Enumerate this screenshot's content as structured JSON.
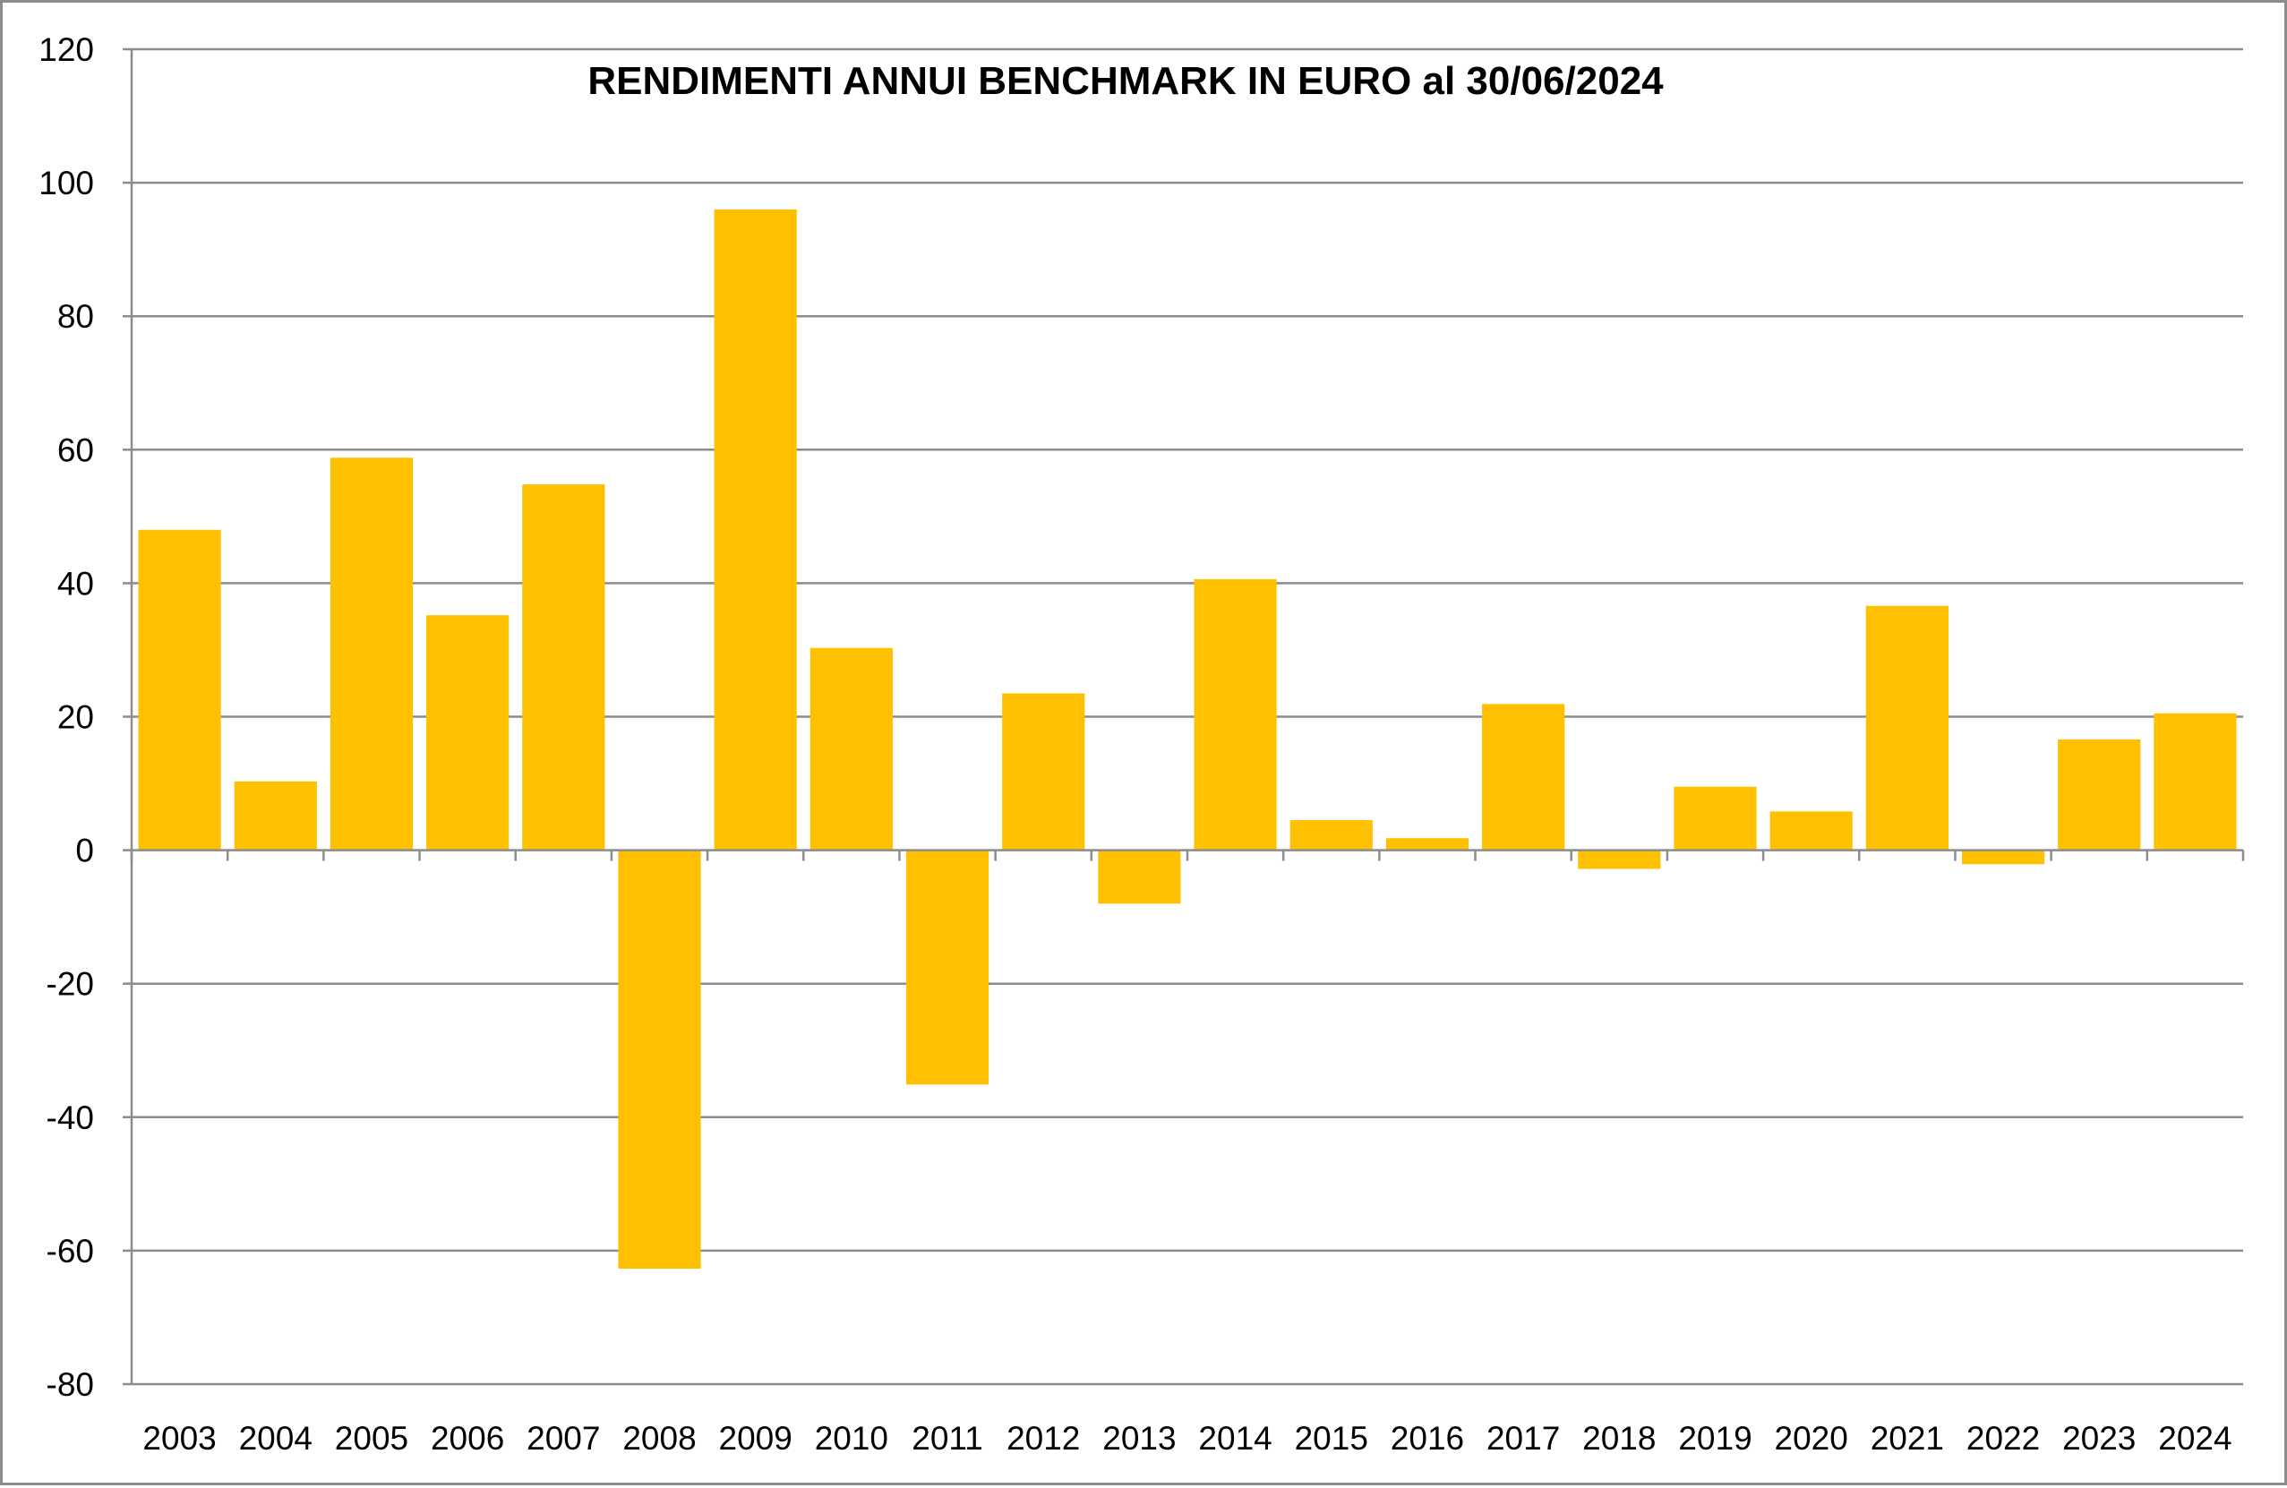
{
  "chart_data": {
    "type": "bar",
    "title": "RENDIMENTI ANNUI BENCHMARK IN EURO al 30/06/2024",
    "xlabel": "",
    "ylabel": "",
    "categories": [
      "2003",
      "2004",
      "2005",
      "2006",
      "2007",
      "2008",
      "2009",
      "2010",
      "2011",
      "2012",
      "2013",
      "2014",
      "2015",
      "2016",
      "2017",
      "2018",
      "2019",
      "2020",
      "2021",
      "2022",
      "2023",
      "2024"
    ],
    "values": [
      48,
      10.3,
      58.8,
      35.2,
      54.8,
      -62.7,
      96,
      30.3,
      -35.1,
      23.5,
      -8,
      40.6,
      4.5,
      1.8,
      21.9,
      -2.8,
      9.5,
      5.8,
      36.6,
      -2.1,
      16.6,
      20.5
    ],
    "ylim": [
      -80,
      120
    ],
    "yticks": [
      120,
      100,
      80,
      60,
      40,
      20,
      0,
      -20,
      -40,
      -60,
      -80
    ],
    "grid": true,
    "legend": "none",
    "colors": {
      "bar": "#FFC000",
      "grid": "#8c8c8c",
      "axis": "#8c8c8c"
    }
  }
}
